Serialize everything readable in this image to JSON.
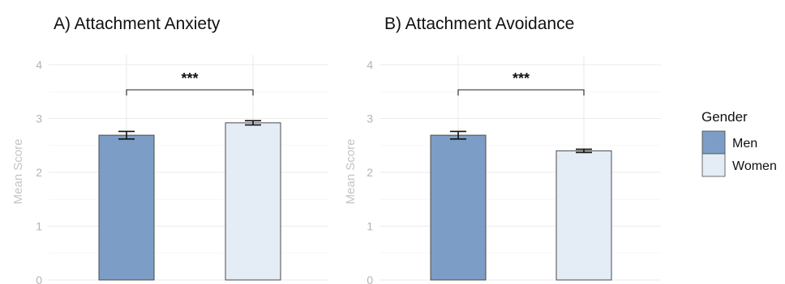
{
  "chart_data": [
    {
      "type": "bar",
      "title": "A) Attachment Anxiety",
      "ylabel": "Mean Score",
      "xlabel": "",
      "ylim": [
        0,
        4
      ],
      "yticks": [
        "0",
        "1",
        "2",
        "3",
        "4"
      ],
      "grid": true,
      "categories": [
        "Men",
        "Women"
      ],
      "values": [
        2.69,
        2.92
      ],
      "errors": [
        0.07,
        0.04
      ],
      "significance": "***"
    },
    {
      "type": "bar",
      "title": "B) Attachment Avoidance",
      "ylabel": "Mean Score",
      "xlabel": "",
      "ylim": [
        0,
        4
      ],
      "yticks": [
        "0",
        "1",
        "2",
        "3",
        "4"
      ],
      "grid": true,
      "categories": [
        "Men",
        "Women"
      ],
      "values": [
        2.69,
        2.4
      ],
      "errors": [
        0.07,
        0.03
      ],
      "significance": "***"
    }
  ],
  "legend": {
    "title": "Gender",
    "placement": "right",
    "items": [
      {
        "label": "Men",
        "color": "#7c9ec6"
      },
      {
        "label": "Women",
        "color": "#e4ecf6"
      }
    ]
  },
  "colors": {
    "men": "#7c9ec6",
    "women": "#e4ecf6",
    "bar_outline": "#4a4a4a",
    "grid": "#ebebeb",
    "axis_text": "#b3b3b3"
  }
}
